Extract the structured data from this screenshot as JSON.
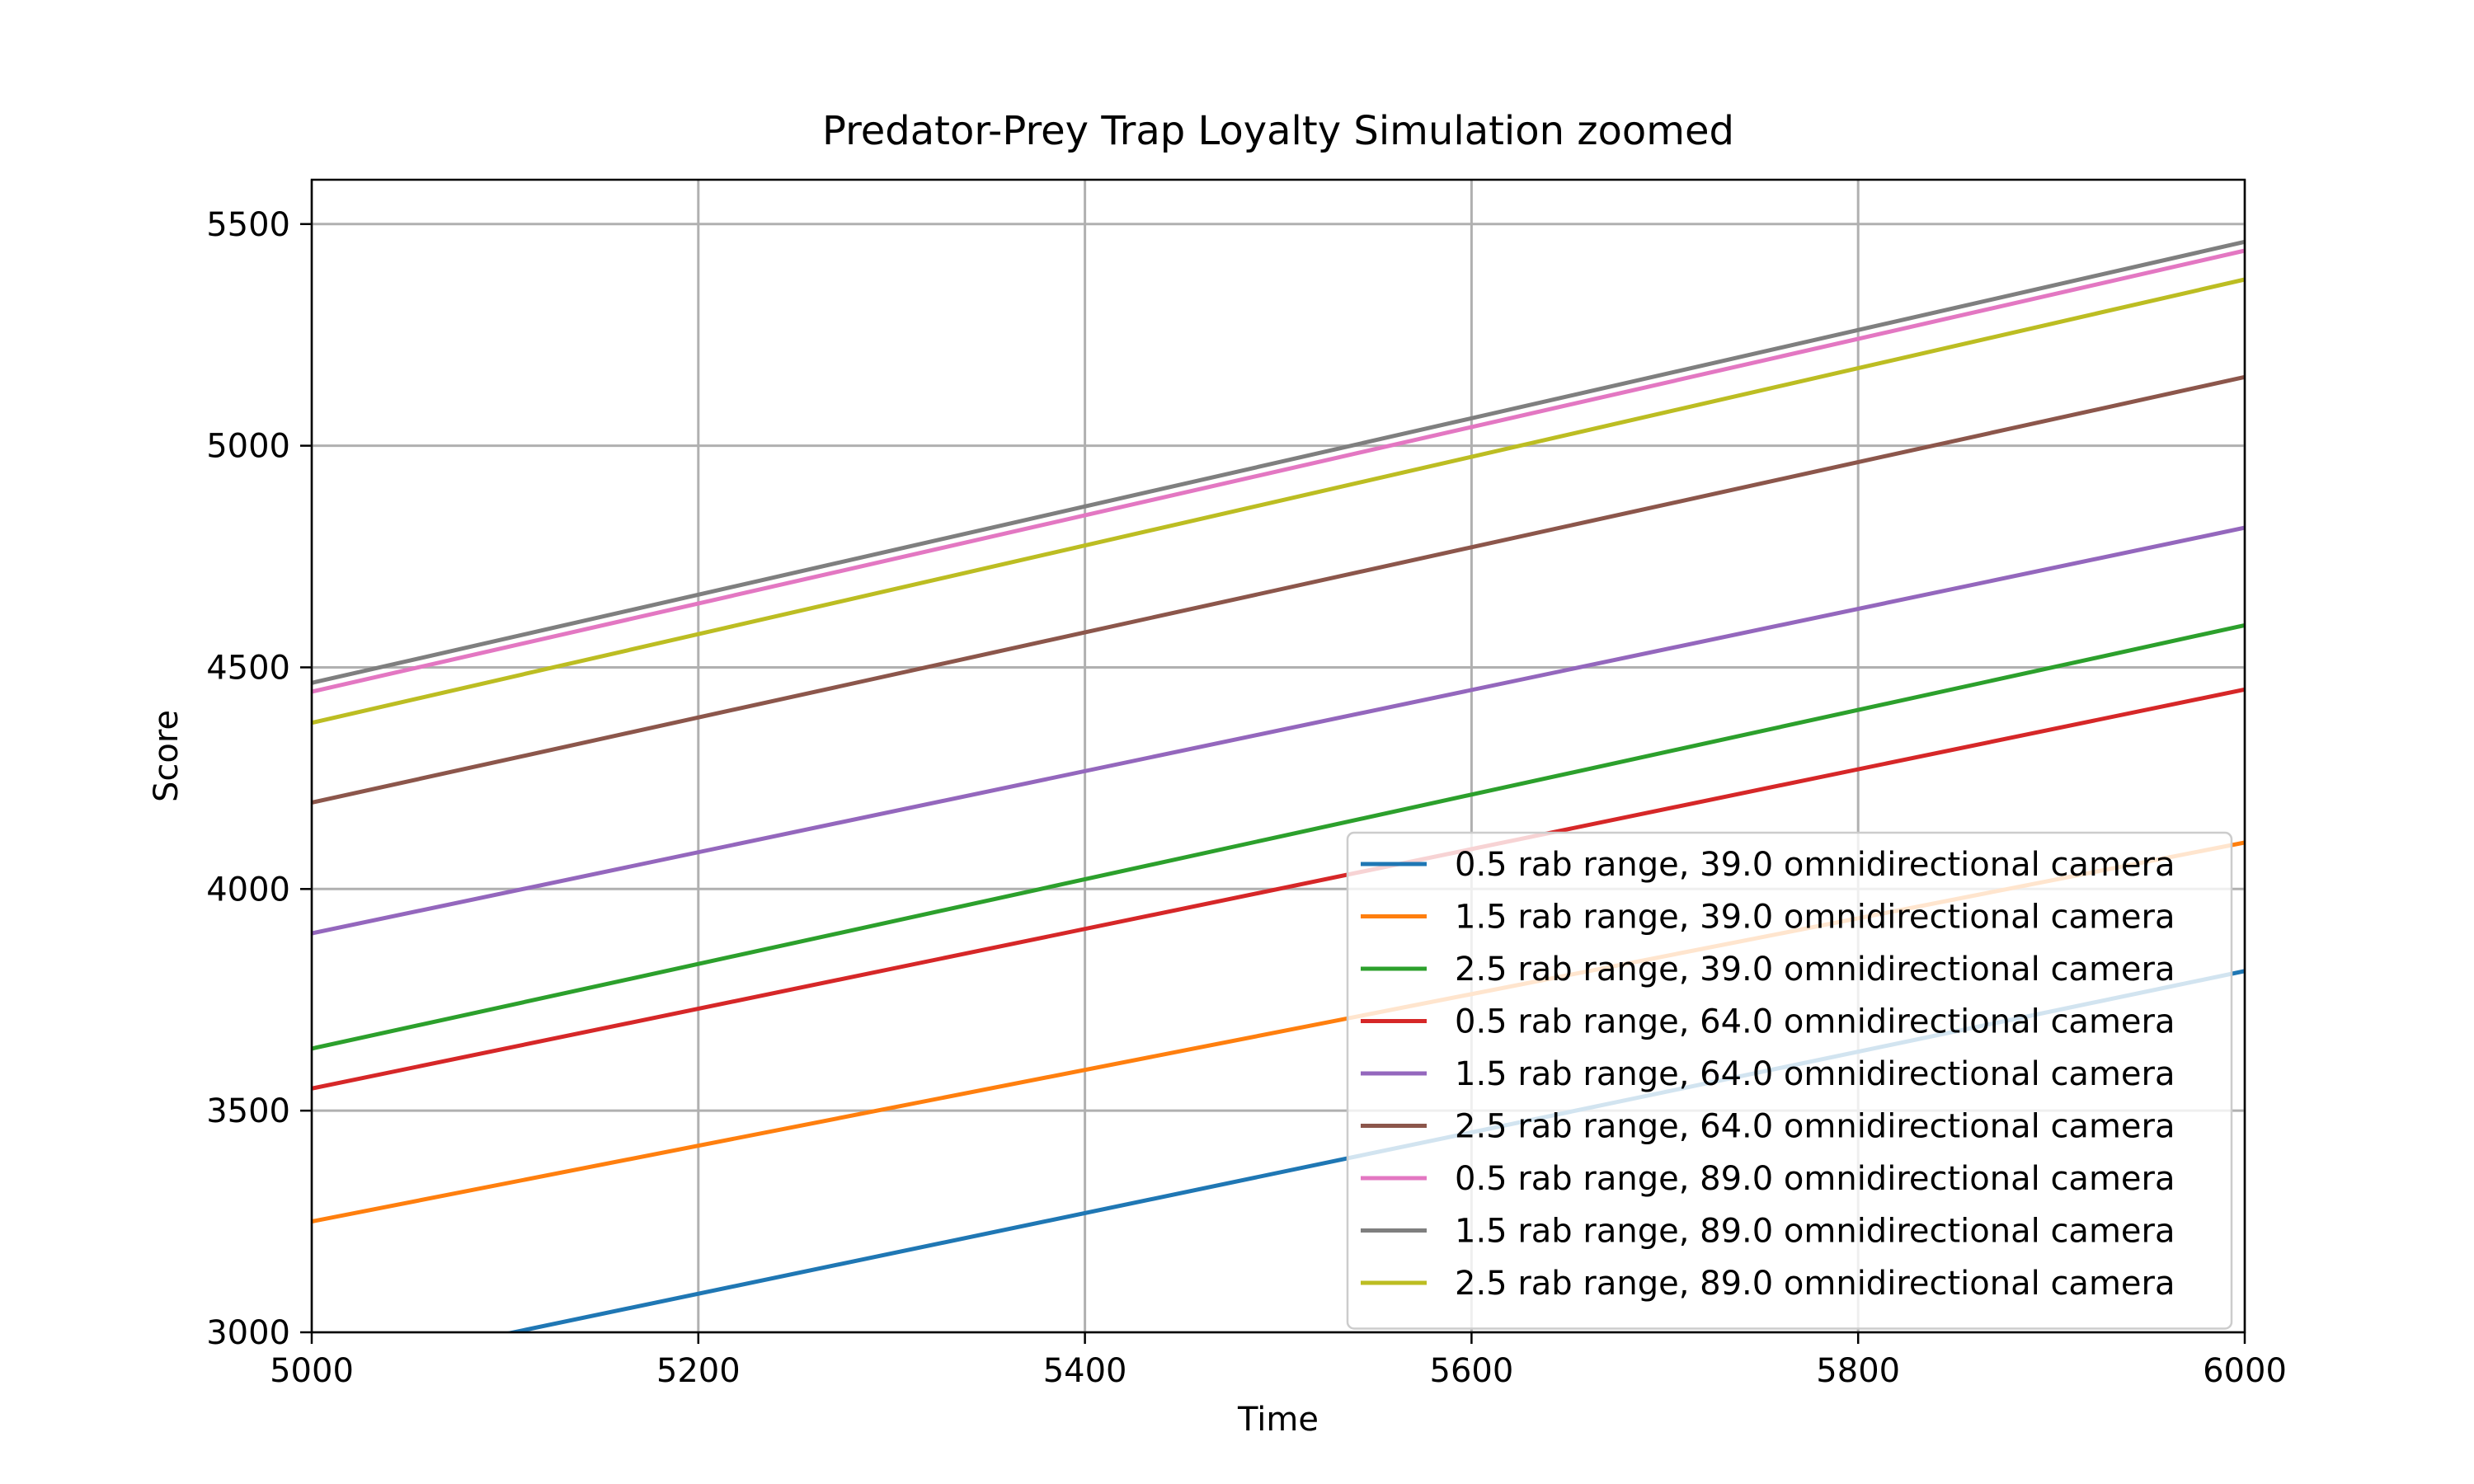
{
  "chart_data": {
    "type": "line",
    "title": "Predator-Prey Trap Loyalty Simulation zoomed",
    "xlabel": "Time",
    "ylabel": "Score",
    "xlim": [
      5000,
      6000
    ],
    "ylim": [
      3000,
      5600
    ],
    "xticks": [
      5000,
      5200,
      5400,
      5600,
      5800,
      6000
    ],
    "yticks": [
      3000,
      3500,
      4000,
      4500,
      5000,
      5500
    ],
    "grid": true,
    "legend_position": "lower-right",
    "series": [
      {
        "name": "0.5 rab range, 39.0 omnidirectional camera",
        "color": "#1f77b4",
        "x": [
          5000,
          6000
        ],
        "y": [
          2905,
          3815
        ]
      },
      {
        "name": "1.5 rab range, 39.0 omnidirectional camera",
        "color": "#ff7f0e",
        "x": [
          5000,
          6000
        ],
        "y": [
          3250,
          4105
        ]
      },
      {
        "name": "2.5 rab range, 39.0 omnidirectional camera",
        "color": "#2ca02c",
        "x": [
          5000,
          6000
        ],
        "y": [
          3640,
          4595
        ]
      },
      {
        "name": "0.5 rab range, 64.0 omnidirectional camera",
        "color": "#d62728",
        "x": [
          5000,
          6000
        ],
        "y": [
          3550,
          4450
        ]
      },
      {
        "name": "1.5 rab range, 64.0 omnidirectional camera",
        "color": "#9467bd",
        "x": [
          5000,
          6000
        ],
        "y": [
          3900,
          4815
        ]
      },
      {
        "name": "2.5 rab range, 64.0 omnidirectional camera",
        "color": "#8c564b",
        "x": [
          5000,
          6000
        ],
        "y": [
          4195,
          5155
        ]
      },
      {
        "name": "0.5 rab range, 89.0 omnidirectional camera",
        "color": "#e377c2",
        "x": [
          5000,
          6000
        ],
        "y": [
          4445,
          5440
        ]
      },
      {
        "name": "1.5 rab range, 89.0 omnidirectional camera",
        "color": "#7f7f7f",
        "x": [
          5000,
          6000
        ],
        "y": [
          4465,
          5460
        ]
      },
      {
        "name": "2.5 rab range, 89.0 omnidirectional camera",
        "color": "#bcbd22",
        "x": [
          5000,
          6000
        ],
        "y": [
          4375,
          5375
        ]
      }
    ]
  }
}
